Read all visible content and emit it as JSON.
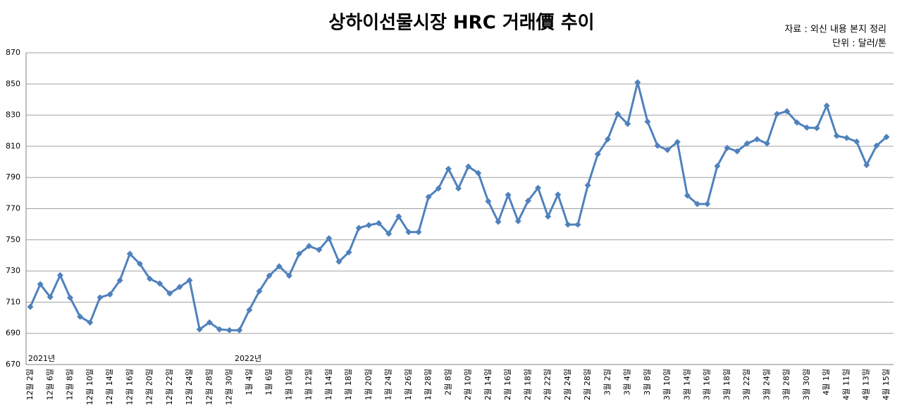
{
  "chart_data": {
    "type": "line",
    "title": "상하이선물시장 HRC 거래價 추이",
    "source": "자료 : 외신 내용 본지 정리",
    "unit": "단위 : 달러/톤",
    "annotations": [
      "2021년",
      "2022년"
    ],
    "categories": [
      "12월 2일",
      null,
      "12월 6일",
      null,
      "12월 8일",
      null,
      "12월 10일",
      null,
      "12월 14일",
      null,
      "12월 16일",
      null,
      "12월 20일",
      null,
      "12월 22일",
      null,
      "12월 24일",
      null,
      "12월 28일",
      null,
      "12월 30일",
      null,
      "1월 4일",
      null,
      "1월 6일",
      null,
      "1월 10일",
      null,
      "1월 12일",
      null,
      "1월 14일",
      null,
      "1월 18일",
      null,
      "1월 20일",
      null,
      "1월 24일",
      null,
      "1월 26일",
      null,
      "1월 28일",
      null,
      "2월 8일",
      null,
      "2월 10일",
      null,
      "2월 14일",
      null,
      "2월 16일",
      null,
      "2월 18일",
      null,
      "2월 22일",
      null,
      "2월 24일",
      null,
      "2월 28일",
      null,
      "3월 2일",
      null,
      "3월 4일",
      null,
      "3월 8일",
      null,
      "3월 10일",
      null,
      "3월 14일",
      null,
      "3월 16일",
      null,
      "3월 18일",
      null,
      "3월 22일",
      null,
      "3월 24일",
      null,
      "3월 28일",
      null,
      "3월 30일",
      null,
      "4월 1일",
      null,
      "4월 11일",
      null,
      "4월 13일",
      null,
      "4월 15일"
    ],
    "series": [
      {
        "color": "#4f81bd",
        "values": [
          707,
          721.5,
          713.3,
          727.3,
          712.9,
          700.7,
          697,
          713,
          715,
          724,
          741,
          734.6,
          725,
          722,
          715.6,
          719.7,
          724,
          692.6,
          697,
          692.6,
          692,
          692,
          705,
          717,
          727,
          733,
          727,
          741,
          746,
          743.6,
          751,
          736,
          742,
          757.6,
          759.4,
          760.7,
          754,
          765,
          755,
          755,
          777.5,
          783,
          795.5,
          783,
          797,
          792.8,
          774.7,
          761.6,
          778.8,
          762,
          775,
          783.3,
          765,
          779,
          759.8,
          759.8,
          785,
          805,
          814.5,
          830.7,
          824.4,
          851,
          825.8,
          810.4,
          807.7,
          812.7,
          778.4,
          773,
          773,
          797.3,
          809,
          806.8,
          811.8,
          814.5,
          811.8,
          830.7,
          832.5,
          825.3,
          822,
          821.7,
          836,
          816.7,
          815.4,
          813,
          798,
          810.4,
          816
        ]
      }
    ],
    "ylim": [
      670,
      870
    ],
    "yticks": [
      670,
      690,
      710,
      730,
      750,
      770,
      790,
      810,
      830,
      850,
      870
    ],
    "grid": true
  }
}
